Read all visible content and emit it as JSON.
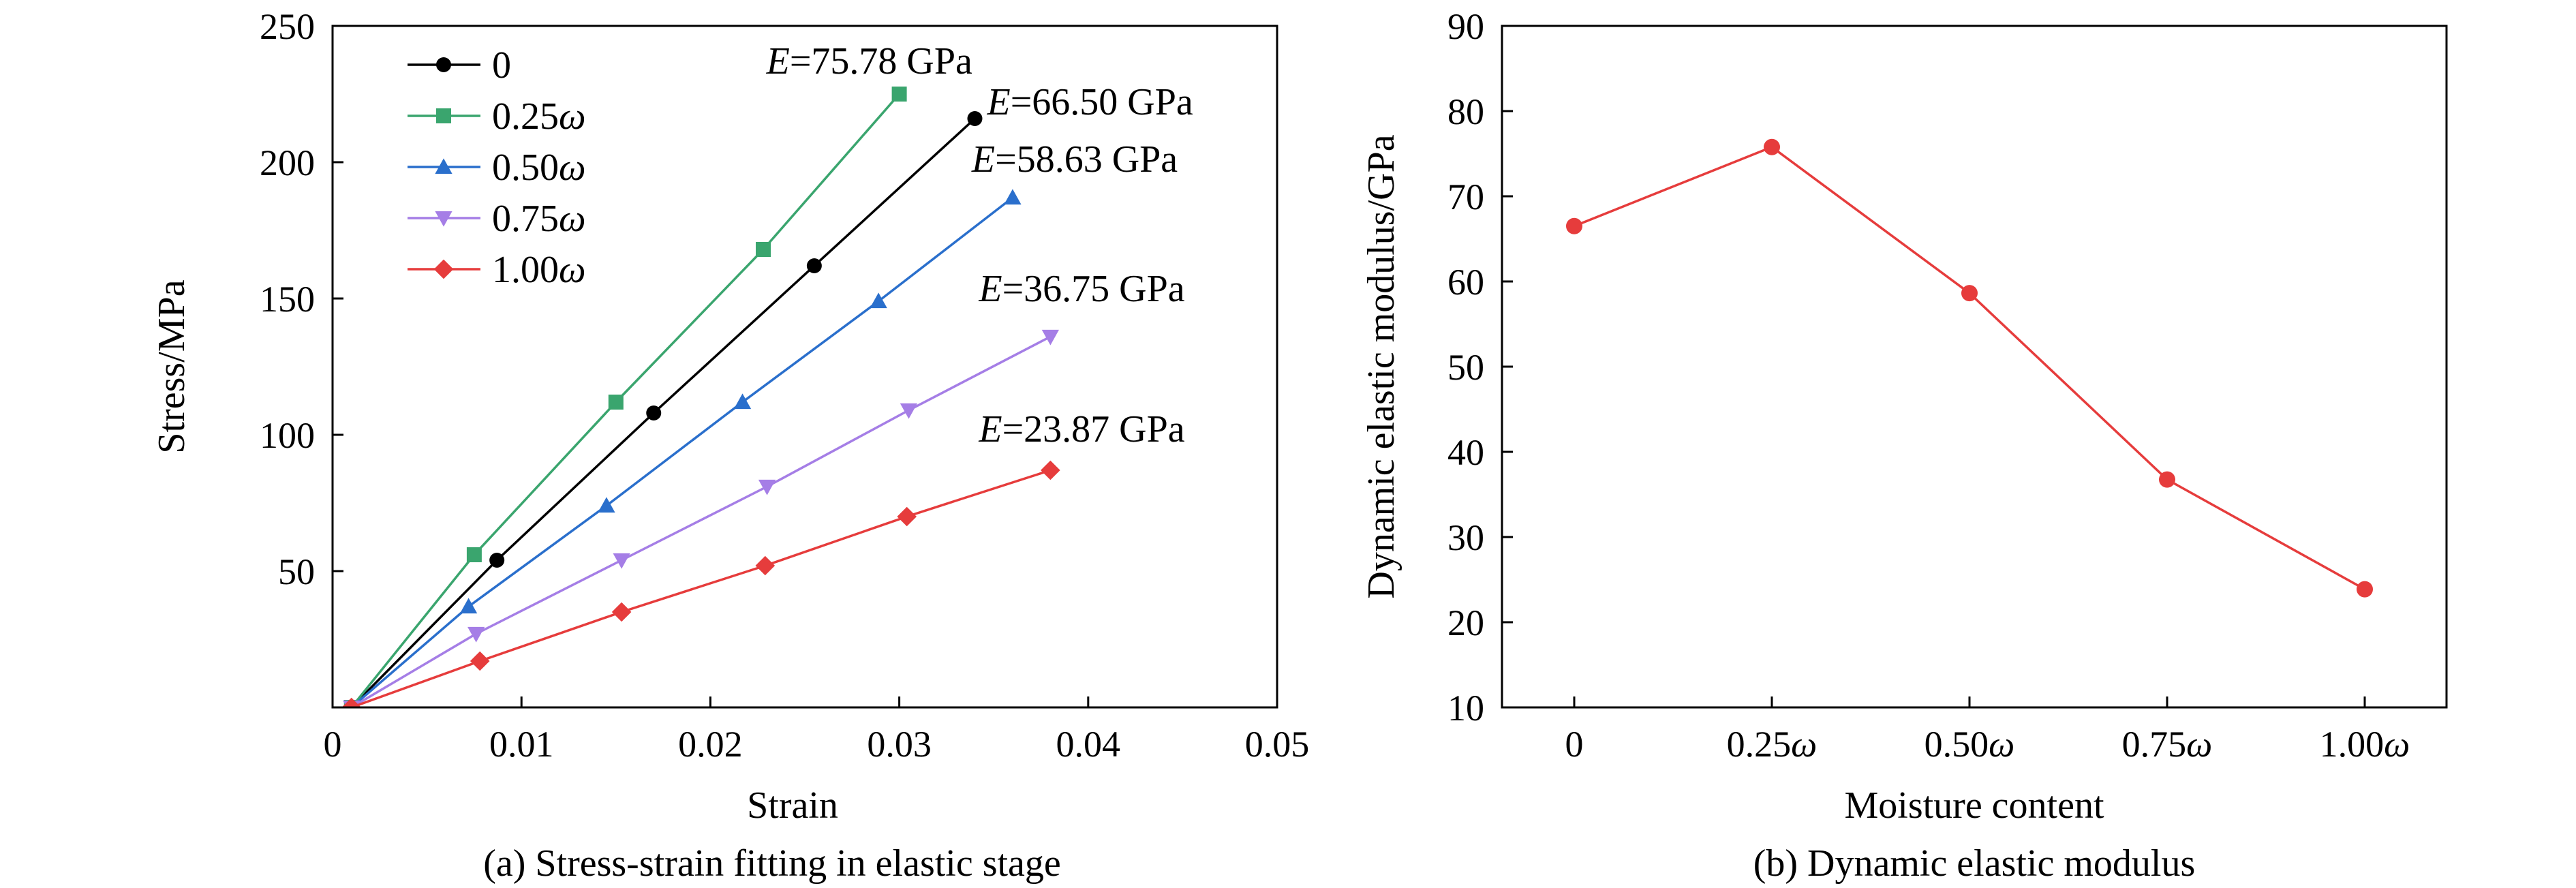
{
  "chart_data": [
    {
      "type": "line",
      "caption": "(a) Stress-strain fitting in elastic stage",
      "xlabel": "Strain",
      "ylabel": "Stress/MPa",
      "xlim": [
        0,
        0.05
      ],
      "ylim": [
        0,
        250
      ],
      "xticks": [
        0,
        0.01,
        0.02,
        0.03,
        0.04,
        0.05
      ],
      "xtick_labels": [
        "0",
        "0.01",
        "0.02",
        "0.03",
        "0.04",
        "0.05"
      ],
      "yticks": [
        50,
        100,
        150,
        200,
        250
      ],
      "ytick_labels": [
        "50",
        "100",
        "150",
        "200",
        "250"
      ],
      "legend": "top-left",
      "series": [
        {
          "name": "0",
          "color": "#000000",
          "marker": "circle",
          "x": [
            0.001,
            0.0087,
            0.017,
            0.0255,
            0.034
          ],
          "y": [
            0,
            54,
            108,
            162,
            216
          ],
          "annotation": "E=66.50 GPa"
        },
        {
          "name": "0.25ω",
          "color": "#3aa56e",
          "marker": "square",
          "x": [
            0.001,
            0.0075,
            0.015,
            0.0228,
            0.03
          ],
          "y": [
            0,
            56,
            112,
            168,
            225
          ],
          "annotation": "E=75.78 GPa"
        },
        {
          "name": "0.50ω",
          "color": "#2a6fcc",
          "marker": "triangle-up",
          "x": [
            0.001,
            0.0072,
            0.0145,
            0.0217,
            0.0289,
            0.036
          ],
          "y": [
            0,
            37,
            74,
            112,
            149,
            187
          ],
          "annotation": "E=58.63 GPa"
        },
        {
          "name": "0.75ω",
          "color": "#a57ee6",
          "marker": "triangle-down",
          "x": [
            0.001,
            0.0076,
            0.0153,
            0.023,
            0.0305,
            0.038
          ],
          "y": [
            0,
            27,
            54,
            81,
            109,
            136
          ],
          "annotation": "E=36.75 GPa"
        },
        {
          "name": "1.00ω",
          "color": "#e63c3c",
          "marker": "diamond",
          "x": [
            0.001,
            0.0078,
            0.0153,
            0.0229,
            0.0304,
            0.038
          ],
          "y": [
            0,
            17,
            35,
            52,
            70,
            87
          ],
          "annotation": "E=23.87 GPa"
        }
      ]
    },
    {
      "type": "line",
      "caption": "(b) Dynamic elastic modulus",
      "xlabel": "Moisture content",
      "ylabel": "Dynamic elastic modulus/GPa",
      "categories": [
        "0",
        "0.25ω",
        "0.50ω",
        "0.75ω",
        "1.00ω"
      ],
      "ylim": [
        10,
        90
      ],
      "yticks": [
        10,
        20,
        30,
        40,
        50,
        60,
        70,
        80,
        90
      ],
      "ytick_labels": [
        "10",
        "20",
        "30",
        "40",
        "50",
        "60",
        "70",
        "80",
        "90"
      ],
      "series": [
        {
          "color": "#e63c3c",
          "marker": "circle",
          "values": [
            66.5,
            75.78,
            58.63,
            36.75,
            23.87
          ]
        }
      ]
    }
  ]
}
